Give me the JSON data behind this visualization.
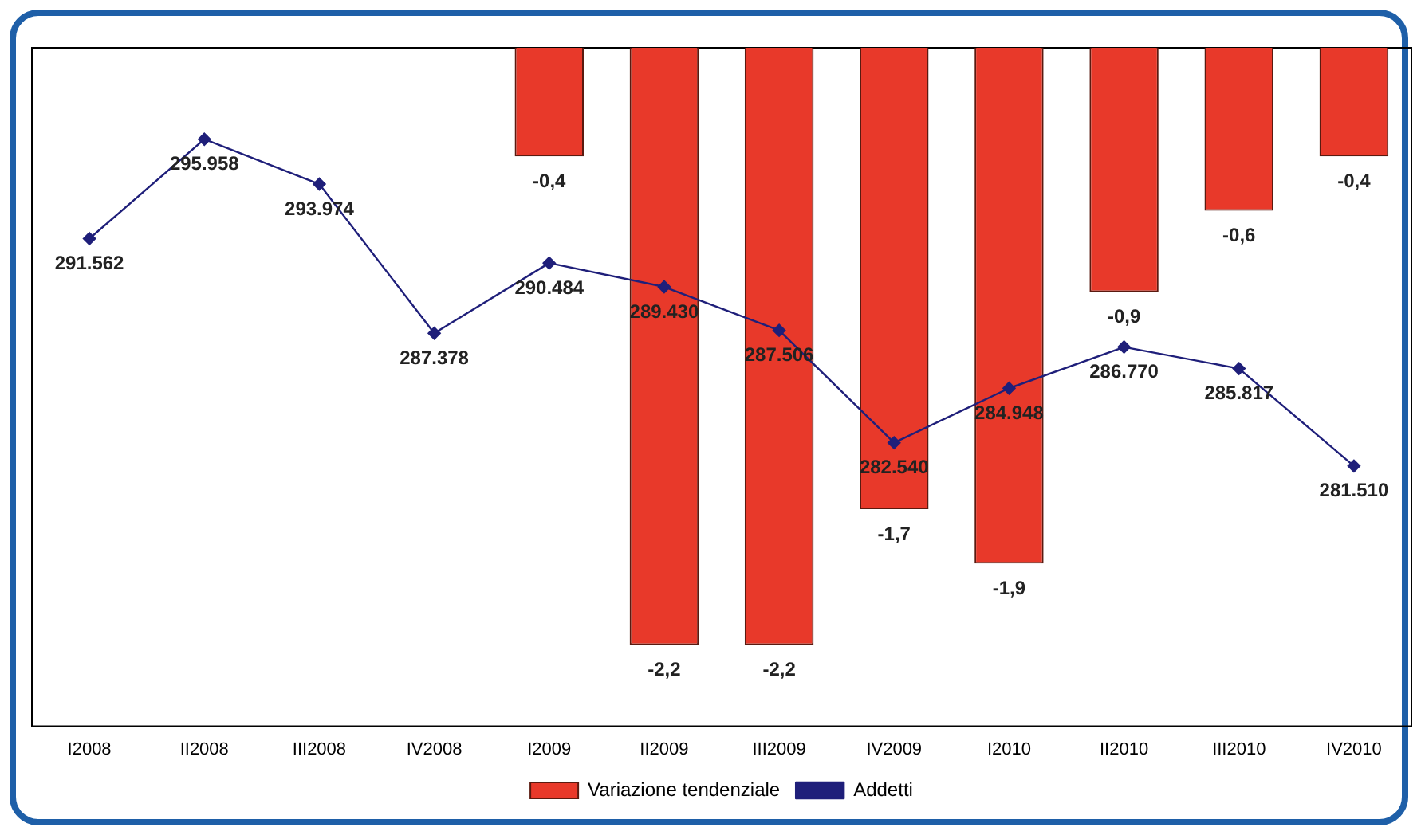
{
  "chart_data": {
    "type": "bar",
    "categories": [
      "I2008",
      "II2008",
      "III2008",
      "IV2008",
      "I2009",
      "II2009",
      "III2009",
      "IV2009",
      "I2010",
      "II2010",
      "III2010",
      "IV2010"
    ],
    "series": [
      {
        "name": "Variazione tendenziale",
        "color": "#e8392a",
        "values": [
          null,
          null,
          null,
          null,
          -0.4,
          -2.2,
          -2.2,
          -1.7,
          -1.9,
          -0.9,
          -0.6,
          -0.4
        ],
        "value_labels": [
          null,
          null,
          null,
          null,
          "-0,4",
          "-2,2",
          "-2,2",
          "-1,7",
          "-1,9",
          "-0,9",
          "-0,6",
          "-0,4"
        ]
      },
      {
        "name": "Addetti",
        "type": "line",
        "axis": "y2",
        "color": "#1f1f7a",
        "marker": "diamond",
        "values": [
          291562,
          295958,
          293974,
          287378,
          290484,
          289430,
          287506,
          282540,
          284948,
          286770,
          285817,
          281510
        ],
        "value_labels": [
          "291.562",
          "295.958",
          "293.974",
          "287.378",
          "290.484",
          "289.430",
          "287.506",
          "282.540",
          "284.948",
          "286.770",
          "285.817",
          "281.510"
        ]
      }
    ],
    "ylim": [
      -2.5,
      0
    ],
    "y2lim": [
      270000,
      300000
    ],
    "tick_labels": "x",
    "grid": false,
    "legend": "bottom"
  }
}
